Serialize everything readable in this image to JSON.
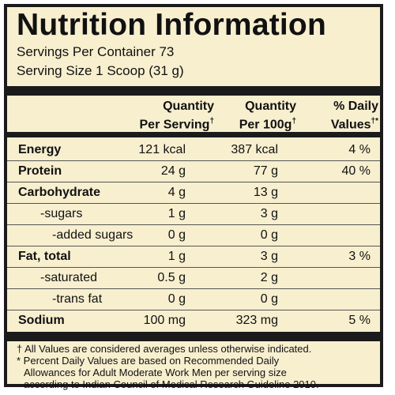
{
  "title": "Nutrition Information",
  "servings_per_container": "Servings Per Container 73",
  "serving_size": "Serving Size 1 Scoop (31 g)",
  "headers": {
    "col1_line1": "Quantity",
    "col1_line2": "Per Serving",
    "col2_line1": "Quantity",
    "col2_line2": "Per 100g",
    "col3_line1": "% Daily",
    "col3_line2": "Values",
    "dagger": "†",
    "dagger_star": "†*"
  },
  "rows": [
    {
      "label": "Energy",
      "per_serving": "121 kcal",
      "per_100g": "387 kcal",
      "dv": "4 %"
    },
    {
      "label": "Protein",
      "per_serving": "24 g",
      "per_100g": "77 g",
      "dv": "40 %"
    },
    {
      "label": "Carbohydrate",
      "per_serving": "4 g",
      "per_100g": "13 g",
      "dv": ""
    },
    {
      "label": "-sugars",
      "per_serving": "1 g",
      "per_100g": "3 g",
      "dv": ""
    },
    {
      "label": "-added sugars",
      "per_serving": "0 g",
      "per_100g": "0 g",
      "dv": ""
    },
    {
      "label": "Fat, total",
      "per_serving": "1 g",
      "per_100g": "3 g",
      "dv": "3 %"
    },
    {
      "label": "-saturated",
      "per_serving": "0.5 g",
      "per_100g": "2 g",
      "dv": ""
    },
    {
      "label": "-trans fat",
      "per_serving": "0 g",
      "per_100g": "0 g",
      "dv": ""
    },
    {
      "label": "Sodium",
      "per_serving": "100 mg",
      "per_100g": "323 mg",
      "dv": "5 %"
    }
  ],
  "footnotes": [
    "† All Values are considered averages unless otherwise indicated.",
    "* Percent Daily Values are based on Recommended Daily",
    "Allowances for Adult Moderate Work Men per serving size",
    "according to Indian Council of Medical Research Guideline 2010."
  ]
}
